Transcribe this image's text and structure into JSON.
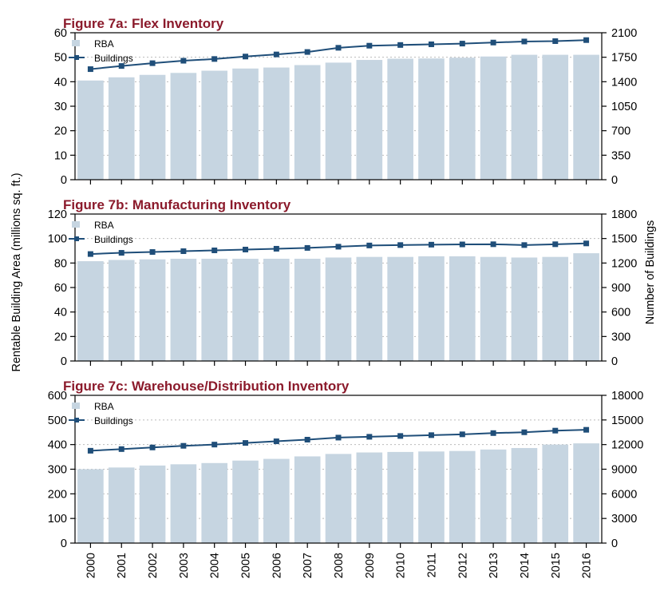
{
  "colors": {
    "bar": "#c6d5e1",
    "line": "#1f4e79",
    "title": "#8b1a2b",
    "grid": "#bbbbbb",
    "axis": "#000000"
  },
  "y_left_label": "Rentable Building Area (millions sq. ft.)",
  "y_right_label": "Number of Buildings",
  "chart_data": [
    {
      "type": "bar",
      "title": "Figure 7a:  Flex Inventory",
      "categories": [
        "2000",
        "2001",
        "2002",
        "2003",
        "2004",
        "2005",
        "2006",
        "2007",
        "2008",
        "2009",
        "2010",
        "2011",
        "2012",
        "2013",
        "2014",
        "2015",
        "2016"
      ],
      "series": [
        {
          "name": "RBA",
          "type": "bar",
          "axis": "left",
          "values": [
            40.5,
            41.8,
            42.8,
            43.6,
            44.5,
            45.4,
            45.8,
            46.8,
            47.8,
            48.9,
            49.4,
            49.5,
            49.8,
            50.3,
            51.0,
            51.0,
            51.0
          ]
        },
        {
          "name": "Buildings",
          "type": "line",
          "axis": "right",
          "values": [
            1580,
            1625,
            1665,
            1700,
            1725,
            1760,
            1790,
            1825,
            1885,
            1915,
            1925,
            1935,
            1945,
            1960,
            1975,
            1980,
            1995
          ]
        }
      ],
      "ylim_left": [
        0,
        60
      ],
      "yticks_left": [
        0,
        10,
        20,
        30,
        40,
        50,
        60
      ],
      "ylim_right": [
        0,
        2100
      ],
      "yticks_right": [
        0,
        350,
        700,
        1050,
        1400,
        1750,
        2100
      ],
      "legend": "top-left",
      "grid": "horizontal dotted"
    },
    {
      "type": "bar",
      "title": "Figure 7b:  Manufacturing Inventory",
      "categories": [
        "2000",
        "2001",
        "2002",
        "2003",
        "2004",
        "2005",
        "2006",
        "2007",
        "2008",
        "2009",
        "2010",
        "2011",
        "2012",
        "2013",
        "2014",
        "2015",
        "2016"
      ],
      "series": [
        {
          "name": "RBA",
          "type": "bar",
          "axis": "left",
          "values": [
            81.5,
            82.5,
            83,
            83.5,
            83.5,
            83.5,
            83.5,
            83.5,
            84.5,
            85,
            85,
            85.5,
            85.5,
            85,
            84.5,
            85,
            88
          ]
        },
        {
          "name": "Buildings",
          "type": "line",
          "axis": "right",
          "values": [
            1310,
            1325,
            1335,
            1345,
            1355,
            1365,
            1375,
            1385,
            1400,
            1415,
            1420,
            1425,
            1428,
            1430,
            1420,
            1430,
            1440
          ]
        }
      ],
      "ylim_left": [
        0,
        120
      ],
      "yticks_left": [
        0,
        20,
        40,
        60,
        80,
        100,
        120
      ],
      "ylim_right": [
        0,
        1800
      ],
      "yticks_right": [
        0,
        300,
        600,
        900,
        1200,
        1500,
        1800
      ],
      "legend": "top-left",
      "grid": "horizontal dotted"
    },
    {
      "type": "bar",
      "title": "Figure 7c:  Warehouse/Distribution Inventory",
      "categories": [
        "2000",
        "2001",
        "2002",
        "2003",
        "2004",
        "2005",
        "2006",
        "2007",
        "2008",
        "2009",
        "2010",
        "2011",
        "2012",
        "2013",
        "2014",
        "2015",
        "2016"
      ],
      "series": [
        {
          "name": "RBA",
          "type": "bar",
          "axis": "left",
          "values": [
            300,
            307,
            315,
            320,
            325,
            335,
            342,
            352,
            362,
            368,
            370,
            372,
            374,
            380,
            386,
            400,
            405
          ]
        },
        {
          "name": "Buildings",
          "type": "line",
          "axis": "right",
          "values": [
            11250,
            11450,
            11650,
            11850,
            12000,
            12200,
            12400,
            12600,
            12850,
            12950,
            13050,
            13150,
            13250,
            13400,
            13500,
            13700,
            13800
          ]
        }
      ],
      "ylim_left": [
        0,
        600
      ],
      "yticks_left": [
        0,
        100,
        200,
        300,
        400,
        500,
        600
      ],
      "ylim_right": [
        0,
        18000
      ],
      "yticks_right": [
        0,
        3000,
        6000,
        9000,
        12000,
        15000,
        18000
      ],
      "legend": "top-left",
      "grid": "horizontal dotted"
    }
  ]
}
